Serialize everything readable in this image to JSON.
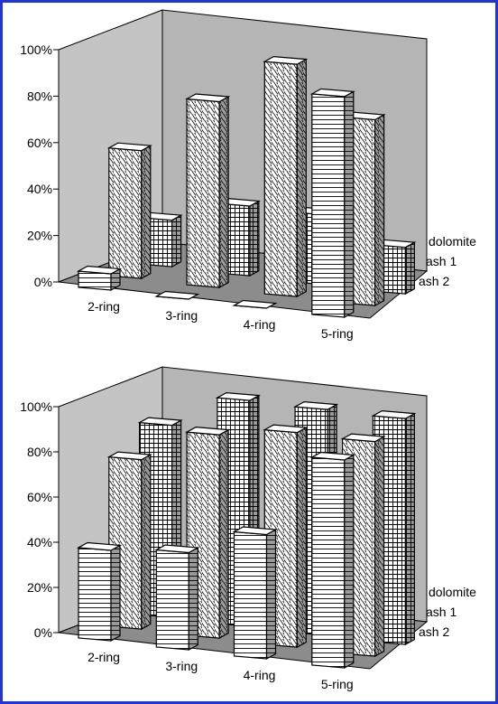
{
  "frame_color": "#1f35d9",
  "chart_data": [
    {
      "type": "bar",
      "categories": [
        "2-ring",
        "3-ring",
        "4-ring",
        "5-ring"
      ],
      "series": [
        {
          "name": "dolomite",
          "pattern": "grid",
          "values": [
            20,
            30,
            30,
            20
          ]
        },
        {
          "name": "ash 1",
          "pattern": "diagonal",
          "values": [
            55,
            80,
            100,
            80
          ]
        },
        {
          "name": "ash 2",
          "pattern": "horizontal",
          "values": [
            7,
            0,
            0,
            95
          ]
        }
      ],
      "ylim": [
        0,
        100
      ],
      "y_ticks": [
        "0%",
        "20%",
        "40%",
        "60%",
        "80%",
        "100%"
      ],
      "grid": false
    },
    {
      "type": "bar",
      "categories": [
        "2-ring",
        "3-ring",
        "4-ring",
        "5-ring"
      ],
      "series": [
        {
          "name": "dolomite",
          "pattern": "grid",
          "values": [
            85,
            100,
            100,
            100
          ]
        },
        {
          "name": "ash 1",
          "pattern": "diagonal",
          "values": [
            75,
            90,
            95,
            95
          ]
        },
        {
          "name": "ash 2",
          "pattern": "horizontal",
          "values": [
            40,
            43,
            55,
            92
          ]
        }
      ],
      "ylim": [
        0,
        100
      ],
      "y_ticks": [
        "0%",
        "20%",
        "40%",
        "60%",
        "80%",
        "100%"
      ],
      "grid": false
    }
  ]
}
